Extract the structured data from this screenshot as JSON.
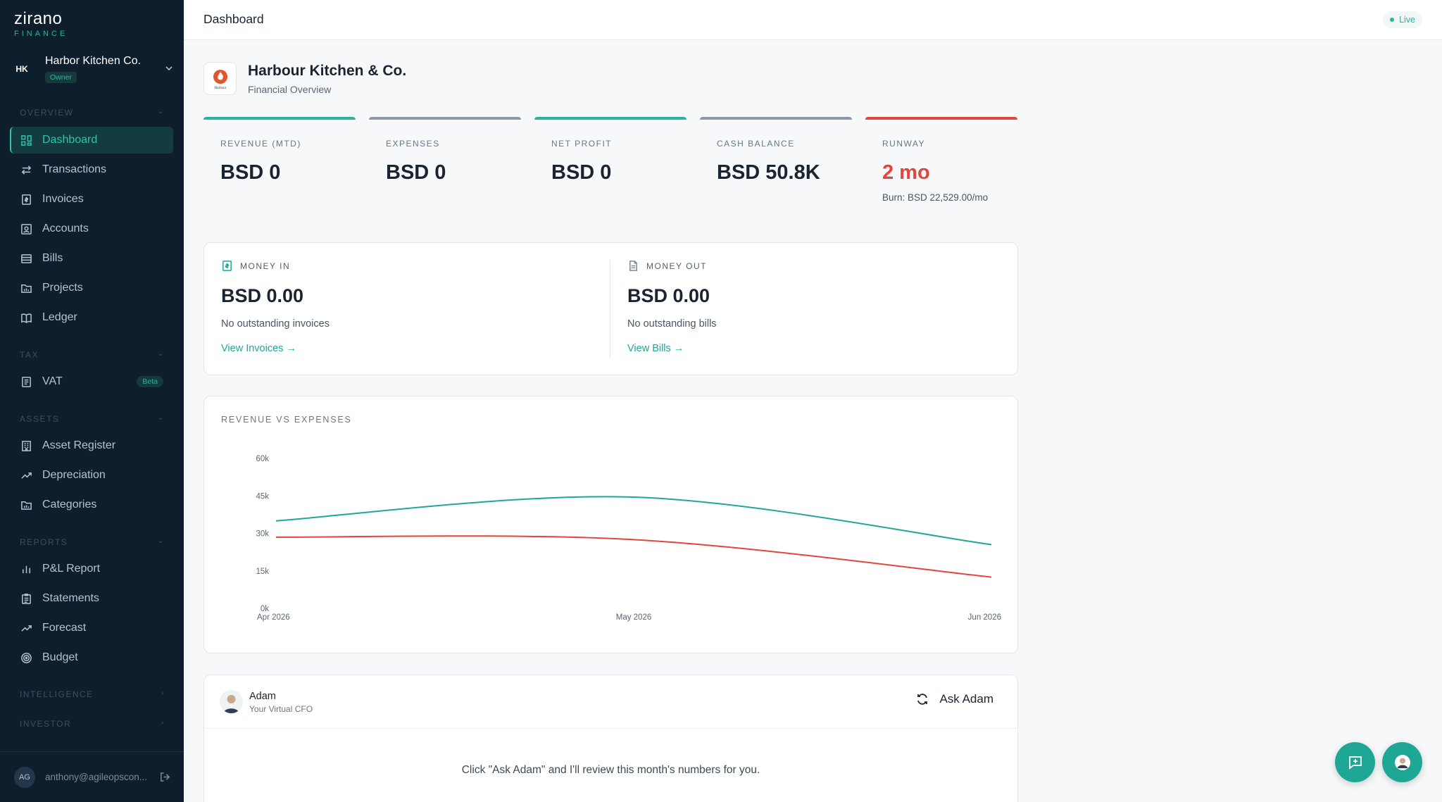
{
  "brand": {
    "name": "zirano",
    "sub": "FINANCE"
  },
  "org": {
    "initials": "HK",
    "name": "Harbor Kitchen Co.",
    "role": "Owner"
  },
  "sidebar": {
    "sections": [
      {
        "label": "OVERVIEW"
      },
      {
        "label": "TAX"
      },
      {
        "label": "ASSETS"
      },
      {
        "label": "REPORTS"
      },
      {
        "label": "INTELLIGENCE"
      },
      {
        "label": "INVESTOR"
      }
    ],
    "items": [
      {
        "label": "Dashboard",
        "icon": "grid-icon"
      },
      {
        "label": "Transactions",
        "icon": "arrows-icon"
      },
      {
        "label": "Invoices",
        "icon": "invoice-icon"
      },
      {
        "label": "Accounts",
        "icon": "accounts-icon"
      },
      {
        "label": "Bills",
        "icon": "bills-icon"
      },
      {
        "label": "Projects",
        "icon": "folder-icon"
      },
      {
        "label": "Ledger",
        "icon": "book-icon"
      },
      {
        "label": "VAT",
        "icon": "receipt-icon",
        "badge": "Beta"
      },
      {
        "label": "Asset Register",
        "icon": "building-icon"
      },
      {
        "label": "Depreciation",
        "icon": "trend-icon"
      },
      {
        "label": "Categories",
        "icon": "folder-icon"
      },
      {
        "label": "P&L Report",
        "icon": "bar-chart-icon"
      },
      {
        "label": "Statements",
        "icon": "clipboard-icon"
      },
      {
        "label": "Forecast",
        "icon": "trend-icon"
      },
      {
        "label": "Budget",
        "icon": "target-icon"
      }
    ]
  },
  "user": {
    "initials": "AG",
    "email": "anthony@agileopscon..."
  },
  "topbar": {
    "title": "Dashboard",
    "status": "Live"
  },
  "company": {
    "name": "Harbour Kitchen & Co.",
    "subtitle": "Financial Overview",
    "logo_text": "Harbour"
  },
  "kpis": [
    {
      "label": "REVENUE (MTD)",
      "value": "BSD 0",
      "color": "#2bb3a0"
    },
    {
      "label": "EXPENSES",
      "value": "BSD 0",
      "color": "#8b96a6"
    },
    {
      "label": "NET PROFIT",
      "value": "BSD 0",
      "color": "#2bb3a0"
    },
    {
      "label": "CASH BALANCE",
      "value": "BSD 50.8K",
      "color": "#8b96a6"
    },
    {
      "label": "RUNWAY",
      "value": "2 mo",
      "color": "#e0453e",
      "note": "Burn: BSD 22,529.00/mo"
    }
  ],
  "money_in": {
    "label": "MONEY IN",
    "value": "BSD 0.00",
    "note": "No outstanding invoices",
    "link": "View Invoices →"
  },
  "money_out": {
    "label": "MONEY OUT",
    "value": "BSD 0.00",
    "note": "No outstanding bills",
    "link": "View Bills →"
  },
  "chart_data": {
    "type": "line",
    "title": "REVENUE VS EXPENSES",
    "x": [
      "Apr 2026",
      "May 2026",
      "Jun 2026"
    ],
    "yticks": [
      "0k",
      "15k",
      "30k",
      "45k",
      "60k"
    ],
    "ylim": [
      0,
      60000
    ],
    "series": [
      {
        "values": [
          35000,
          44500,
          25500
        ],
        "color": "#1fa796"
      },
      {
        "values": [
          28500,
          27500,
          12500
        ],
        "color": "#e0453e"
      }
    ],
    "grid": false,
    "legend": "none"
  },
  "adam": {
    "name": "Adam",
    "role": "Your Virtual CFO",
    "button": "Ask Adam",
    "message": "Click \"Ask Adam\" and I'll review this month's numbers for you."
  }
}
